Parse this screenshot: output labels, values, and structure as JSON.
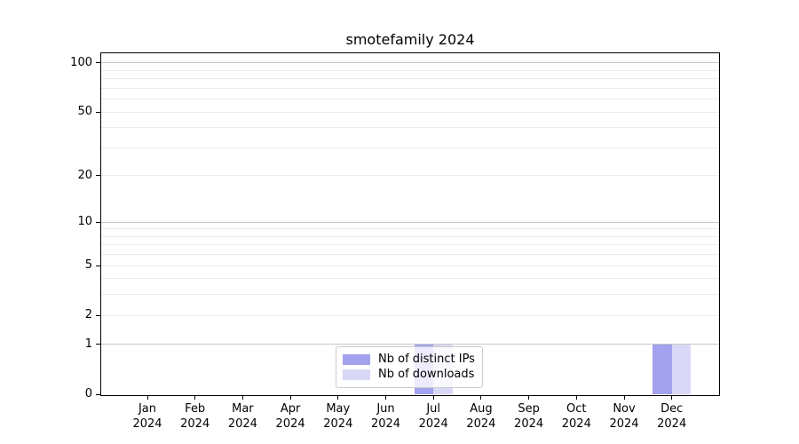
{
  "chart_data": {
    "type": "bar",
    "title": "smotefamily 2024",
    "months": [
      "Jan",
      "Feb",
      "Mar",
      "Apr",
      "May",
      "Jun",
      "Jul",
      "Aug",
      "Sep",
      "Oct",
      "Nov",
      "Dec"
    ],
    "year": "2024",
    "series": [
      {
        "name": "Nb of distinct IPs",
        "color": "#a2a2ee",
        "values": [
          0,
          0,
          0,
          0,
          0,
          0,
          1,
          0,
          0,
          0,
          0,
          1
        ]
      },
      {
        "name": "Nb of downloads",
        "color": "#d9d9f7",
        "values": [
          0,
          0,
          0,
          0,
          0,
          0,
          1,
          0,
          0,
          0,
          0,
          1
        ]
      }
    ],
    "y_axis": {
      "scale": "log1p",
      "min": 0,
      "max": 100,
      "ticks": [
        0,
        1,
        2,
        5,
        10,
        20,
        50,
        100
      ],
      "minor_gridlines": [
        2,
        3,
        4,
        5,
        6,
        7,
        8,
        9,
        20,
        30,
        40,
        50,
        60,
        70,
        80,
        90
      ],
      "major_gridlines": [
        1,
        10,
        100
      ]
    },
    "grid": "horizontal",
    "legend_position": "lower center"
  },
  "colors": {
    "spine": "#000000",
    "tick": "#000000",
    "minor_grid": "#ececec",
    "major_grid": "#c8c8c8",
    "legend_border": "#cccccc",
    "background": "#ffffff"
  }
}
